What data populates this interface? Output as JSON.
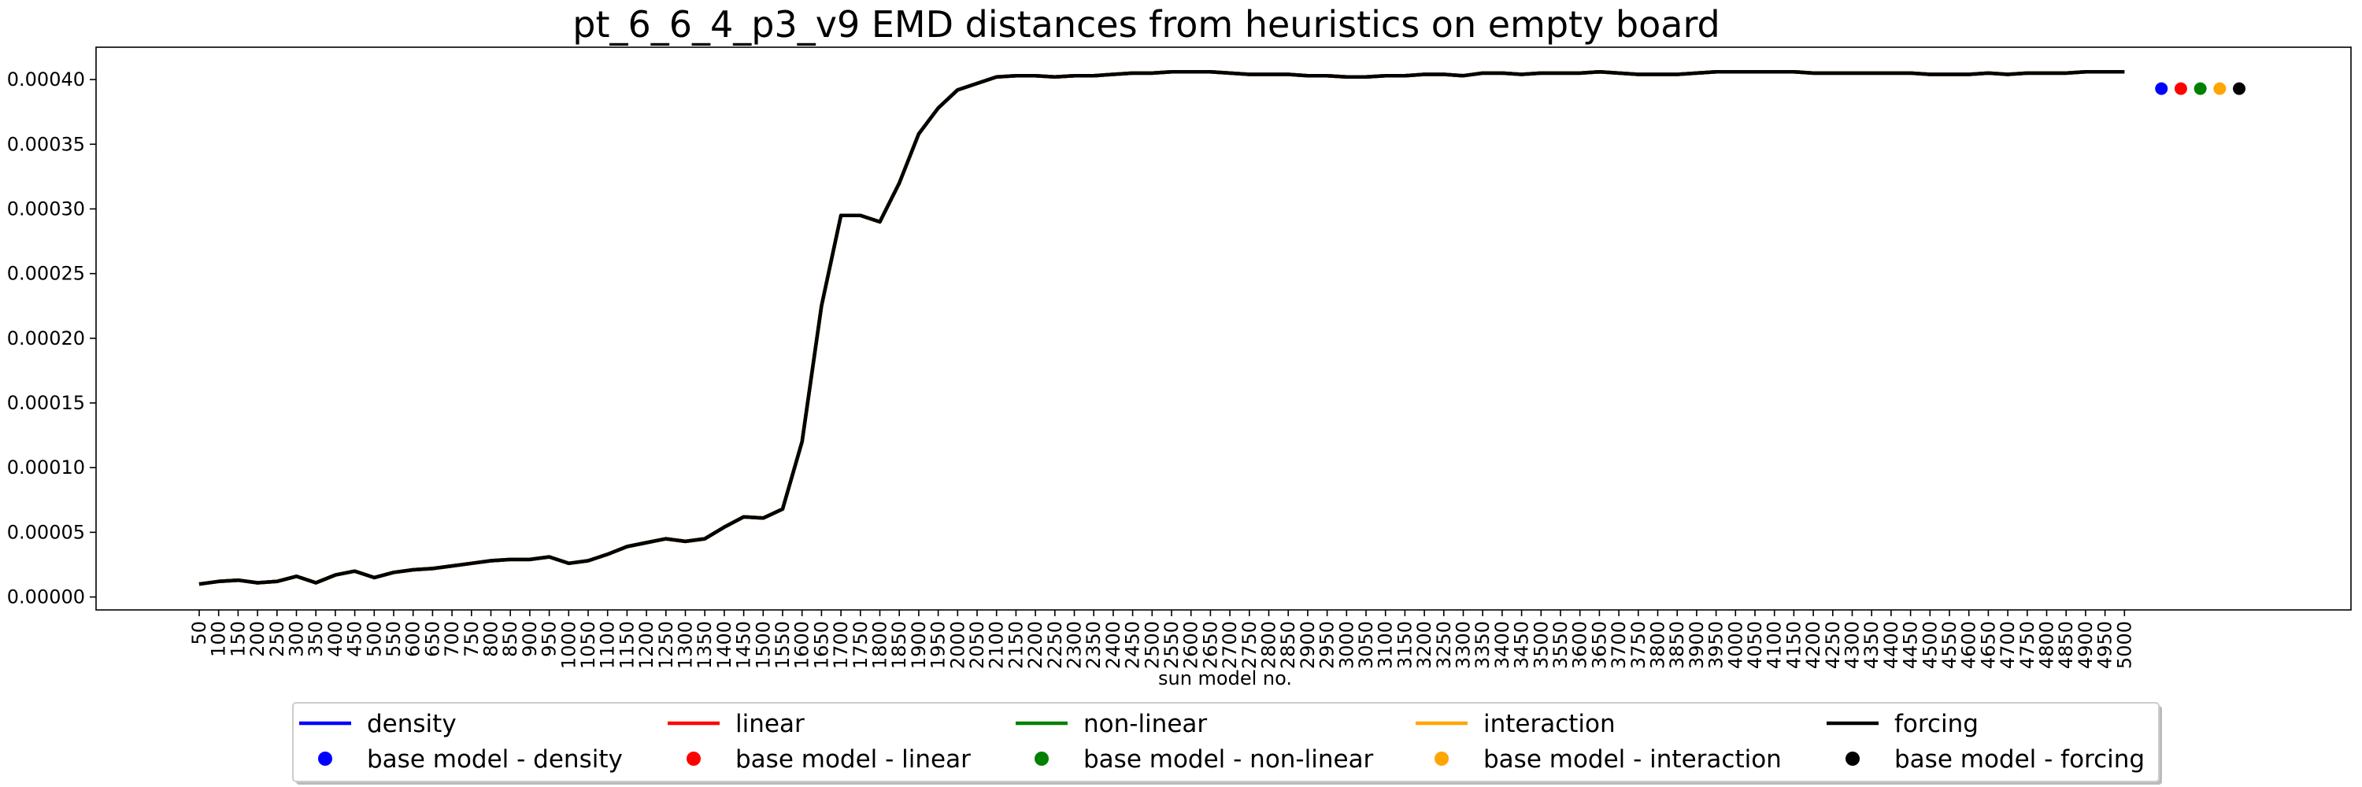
{
  "chart_data": {
    "type": "line",
    "title": "pt_6_6_4_p3_v9 EMD distances from heuristics on empty board",
    "xlabel": "sun model no.",
    "ylabel": "",
    "ylim": [
      -1e-05,
      0.000425
    ],
    "yticks": [
      0.0,
      5e-05,
      0.0001,
      0.00015,
      0.0002,
      0.00025,
      0.0003,
      0.00035,
      0.0004
    ],
    "ytick_labels": [
      "0.00000",
      "0.00005",
      "0.00010",
      "0.00015",
      "0.00020",
      "0.00025",
      "0.00030",
      "0.00035",
      "0.00040"
    ],
    "x": [
      50,
      100,
      150,
      200,
      250,
      300,
      350,
      400,
      450,
      500,
      550,
      600,
      650,
      700,
      750,
      800,
      850,
      900,
      950,
      1000,
      1050,
      1100,
      1150,
      1200,
      1250,
      1300,
      1350,
      1400,
      1450,
      1500,
      1550,
      1600,
      1650,
      1700,
      1750,
      1800,
      1850,
      1900,
      1950,
      2000,
      2050,
      2100,
      2150,
      2200,
      2250,
      2300,
      2350,
      2400,
      2450,
      2500,
      2550,
      2600,
      2650,
      2700,
      2750,
      2800,
      2850,
      2900,
      2950,
      3000,
      3050,
      3100,
      3150,
      3200,
      3250,
      3300,
      3350,
      3400,
      3450,
      3500,
      3550,
      3600,
      3650,
      3700,
      3750,
      3800,
      3850,
      3900,
      3950,
      4000,
      4050,
      4100,
      4150,
      4200,
      4250,
      4300,
      4350,
      4400,
      4450,
      4500,
      4550,
      4600,
      4650,
      4700,
      4750,
      4800,
      4850,
      4900,
      4950,
      5000
    ],
    "series": [
      {
        "name": "density",
        "color": "#0000ff",
        "values": [
          1e-05,
          1.2e-05,
          1.3e-05,
          1.1e-05,
          1.2e-05,
          1.6e-05,
          1.1e-05,
          1.7e-05,
          2e-05,
          1.5e-05,
          1.9e-05,
          2.1e-05,
          2.2e-05,
          2.4e-05,
          2.6e-05,
          2.8e-05,
          2.9e-05,
          2.9e-05,
          3.1e-05,
          2.6e-05,
          2.8e-05,
          3.3e-05,
          3.9e-05,
          4.2e-05,
          4.5e-05,
          4.3e-05,
          4.5e-05,
          5.4e-05,
          6.2e-05,
          6.1e-05,
          6.8e-05,
          0.00012,
          0.000225,
          0.000295,
          0.000295,
          0.00029,
          0.00032,
          0.000358,
          0.000378,
          0.000392,
          0.000397,
          0.000402,
          0.000403,
          0.000403,
          0.000402,
          0.000403,
          0.000403,
          0.000404,
          0.000405,
          0.000405,
          0.000406,
          0.000406,
          0.000406,
          0.000405,
          0.000404,
          0.000404,
          0.000404,
          0.000403,
          0.000403,
          0.000402,
          0.000402,
          0.000403,
          0.000403,
          0.000404,
          0.000404,
          0.000403,
          0.000405,
          0.000405,
          0.000404,
          0.000405,
          0.000405,
          0.000405,
          0.000406,
          0.000405,
          0.000404,
          0.000404,
          0.000404,
          0.000405,
          0.000406,
          0.000406,
          0.000406,
          0.000406,
          0.000406,
          0.000405,
          0.000405,
          0.000405,
          0.000405,
          0.000405,
          0.000405,
          0.000404,
          0.000404,
          0.000404,
          0.000405,
          0.000404,
          0.000405,
          0.000405,
          0.000405,
          0.000406,
          0.000406,
          0.000406
        ]
      },
      {
        "name": "linear",
        "color": "#ff0000",
        "values": [
          1e-05,
          1.2e-05,
          1.3e-05,
          1.1e-05,
          1.2e-05,
          1.6e-05,
          1.1e-05,
          1.7e-05,
          2e-05,
          1.5e-05,
          1.9e-05,
          2.1e-05,
          2.2e-05,
          2.4e-05,
          2.6e-05,
          2.8e-05,
          2.9e-05,
          2.9e-05,
          3.1e-05,
          2.6e-05,
          2.8e-05,
          3.3e-05,
          3.9e-05,
          4.2e-05,
          4.5e-05,
          4.3e-05,
          4.5e-05,
          5.4e-05,
          6.2e-05,
          6.1e-05,
          6.8e-05,
          0.00012,
          0.000225,
          0.000295,
          0.000295,
          0.00029,
          0.00032,
          0.000358,
          0.000378,
          0.000392,
          0.000397,
          0.000402,
          0.000403,
          0.000403,
          0.000402,
          0.000403,
          0.000403,
          0.000404,
          0.000405,
          0.000405,
          0.000406,
          0.000406,
          0.000406,
          0.000405,
          0.000404,
          0.000404,
          0.000404,
          0.000403,
          0.000403,
          0.000402,
          0.000402,
          0.000403,
          0.000403,
          0.000404,
          0.000404,
          0.000403,
          0.000405,
          0.000405,
          0.000404,
          0.000405,
          0.000405,
          0.000405,
          0.000406,
          0.000405,
          0.000404,
          0.000404,
          0.000404,
          0.000405,
          0.000406,
          0.000406,
          0.000406,
          0.000406,
          0.000406,
          0.000405,
          0.000405,
          0.000405,
          0.000405,
          0.000405,
          0.000405,
          0.000404,
          0.000404,
          0.000404,
          0.000405,
          0.000404,
          0.000405,
          0.000405,
          0.000405,
          0.000406,
          0.000406,
          0.000406
        ]
      },
      {
        "name": "non-linear",
        "color": "#008000",
        "values": [
          1e-05,
          1.2e-05,
          1.3e-05,
          1.1e-05,
          1.2e-05,
          1.6e-05,
          1.1e-05,
          1.7e-05,
          2e-05,
          1.5e-05,
          1.9e-05,
          2.1e-05,
          2.2e-05,
          2.4e-05,
          2.6e-05,
          2.8e-05,
          2.9e-05,
          2.9e-05,
          3.1e-05,
          2.6e-05,
          2.8e-05,
          3.3e-05,
          3.9e-05,
          4.2e-05,
          4.5e-05,
          4.3e-05,
          4.5e-05,
          5.4e-05,
          6.2e-05,
          6.1e-05,
          6.8e-05,
          0.00012,
          0.000225,
          0.000295,
          0.000295,
          0.00029,
          0.00032,
          0.000358,
          0.000378,
          0.000392,
          0.000397,
          0.000402,
          0.000403,
          0.000403,
          0.000402,
          0.000403,
          0.000403,
          0.000404,
          0.000405,
          0.000405,
          0.000406,
          0.000406,
          0.000406,
          0.000405,
          0.000404,
          0.000404,
          0.000404,
          0.000403,
          0.000403,
          0.000402,
          0.000402,
          0.000403,
          0.000403,
          0.000404,
          0.000404,
          0.000403,
          0.000405,
          0.000405,
          0.000404,
          0.000405,
          0.000405,
          0.000405,
          0.000406,
          0.000405,
          0.000404,
          0.000404,
          0.000404,
          0.000405,
          0.000406,
          0.000406,
          0.000406,
          0.000406,
          0.000406,
          0.000405,
          0.000405,
          0.000405,
          0.000405,
          0.000405,
          0.000405,
          0.000404,
          0.000404,
          0.000404,
          0.000405,
          0.000404,
          0.000405,
          0.000405,
          0.000405,
          0.000406,
          0.000406,
          0.000406
        ]
      },
      {
        "name": "interaction",
        "color": "#ffa500",
        "values": [
          1e-05,
          1.2e-05,
          1.3e-05,
          1.1e-05,
          1.2e-05,
          1.6e-05,
          1.1e-05,
          1.7e-05,
          2e-05,
          1.5e-05,
          1.9e-05,
          2.1e-05,
          2.2e-05,
          2.4e-05,
          2.6e-05,
          2.8e-05,
          2.9e-05,
          2.9e-05,
          3.1e-05,
          2.6e-05,
          2.8e-05,
          3.3e-05,
          3.9e-05,
          4.2e-05,
          4.5e-05,
          4.3e-05,
          4.5e-05,
          5.4e-05,
          6.2e-05,
          6.1e-05,
          6.8e-05,
          0.00012,
          0.000225,
          0.000295,
          0.000295,
          0.00029,
          0.00032,
          0.000358,
          0.000378,
          0.000392,
          0.000397,
          0.000402,
          0.000403,
          0.000403,
          0.000402,
          0.000403,
          0.000403,
          0.000404,
          0.000405,
          0.000405,
          0.000406,
          0.000406,
          0.000406,
          0.000405,
          0.000404,
          0.000404,
          0.000404,
          0.000403,
          0.000403,
          0.000402,
          0.000402,
          0.000403,
          0.000403,
          0.000404,
          0.000404,
          0.000403,
          0.000405,
          0.000405,
          0.000404,
          0.000405,
          0.000405,
          0.000405,
          0.000406,
          0.000405,
          0.000404,
          0.000404,
          0.000404,
          0.000405,
          0.000406,
          0.000406,
          0.000406,
          0.000406,
          0.000406,
          0.000405,
          0.000405,
          0.000405,
          0.000405,
          0.000405,
          0.000405,
          0.000404,
          0.000404,
          0.000404,
          0.000405,
          0.000404,
          0.000405,
          0.000405,
          0.000405,
          0.000406,
          0.000406,
          0.000406
        ]
      },
      {
        "name": "forcing",
        "color": "#000000",
        "values": [
          1e-05,
          1.2e-05,
          1.3e-05,
          1.1e-05,
          1.2e-05,
          1.6e-05,
          1.1e-05,
          1.7e-05,
          2e-05,
          1.5e-05,
          1.9e-05,
          2.1e-05,
          2.2e-05,
          2.4e-05,
          2.6e-05,
          2.8e-05,
          2.9e-05,
          2.9e-05,
          3.1e-05,
          2.6e-05,
          2.8e-05,
          3.3e-05,
          3.9e-05,
          4.2e-05,
          4.5e-05,
          4.3e-05,
          4.5e-05,
          5.4e-05,
          6.2e-05,
          6.1e-05,
          6.8e-05,
          0.00012,
          0.000225,
          0.000295,
          0.000295,
          0.00029,
          0.00032,
          0.000358,
          0.000378,
          0.000392,
          0.000397,
          0.000402,
          0.000403,
          0.000403,
          0.000402,
          0.000403,
          0.000403,
          0.000404,
          0.000405,
          0.000405,
          0.000406,
          0.000406,
          0.000406,
          0.000405,
          0.000404,
          0.000404,
          0.000404,
          0.000403,
          0.000403,
          0.000402,
          0.000402,
          0.000403,
          0.000403,
          0.000404,
          0.000404,
          0.000403,
          0.000405,
          0.000405,
          0.000404,
          0.000405,
          0.000405,
          0.000405,
          0.000406,
          0.000405,
          0.000404,
          0.000404,
          0.000404,
          0.000405,
          0.000406,
          0.000406,
          0.000406,
          0.000406,
          0.000406,
          0.000405,
          0.000405,
          0.000405,
          0.000405,
          0.000405,
          0.000405,
          0.000404,
          0.000404,
          0.000404,
          0.000405,
          0.000404,
          0.000405,
          0.000405,
          0.000405,
          0.000406,
          0.000406,
          0.000406
        ]
      }
    ],
    "base_models": [
      {
        "name": "base model - density",
        "color": "#0000ff",
        "value": 0.000393
      },
      {
        "name": "base model - linear",
        "color": "#ff0000",
        "value": 0.000393
      },
      {
        "name": "base model - non-linear",
        "color": "#008000",
        "value": 0.000393
      },
      {
        "name": "base model - interaction",
        "color": "#ffa500",
        "value": 0.000393
      },
      {
        "name": "base model - forcing",
        "color": "#000000",
        "value": 0.000393
      }
    ],
    "legend": {
      "placement": "bottom-center",
      "columns": 5,
      "line_entries": [
        "density",
        "linear",
        "non-linear",
        "interaction",
        "forcing"
      ],
      "dot_entries": [
        "base model - density",
        "base model - linear",
        "base model - non-linear",
        "base model - interaction",
        "base model - forcing"
      ]
    },
    "grid": false
  }
}
